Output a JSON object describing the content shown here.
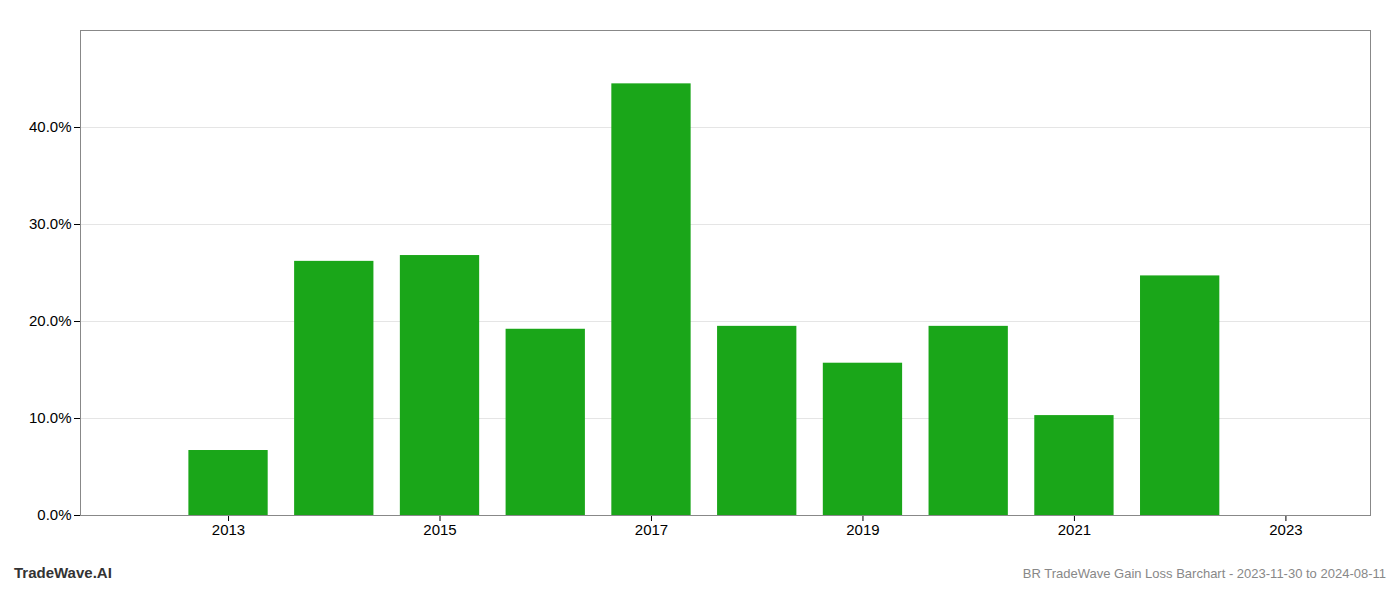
{
  "chart_data": {
    "type": "bar",
    "x": [
      2013,
      2014,
      2015,
      2016,
      2017,
      2018,
      2019,
      2020,
      2021,
      2022
    ],
    "values": [
      0.067,
      0.262,
      0.268,
      0.192,
      0.445,
      0.195,
      0.157,
      0.195,
      0.103,
      0.247
    ],
    "color": "#1aa619",
    "xlim": [
      2011.6,
      2023.8
    ],
    "xticks": [
      2013,
      2015,
      2017,
      2019,
      2021,
      2023
    ],
    "ylim": [
      0.0,
      0.5
    ],
    "yticks": [
      {
        "value": 0.0,
        "label": "0.0%"
      },
      {
        "value": 0.1,
        "label": "10.0%"
      },
      {
        "value": 0.2,
        "label": "20.0%"
      },
      {
        "value": 0.3,
        "label": "30.0%"
      },
      {
        "value": 0.4,
        "label": "40.0%"
      }
    ],
    "grid": true,
    "annotations": [
      "TradeWave.AI",
      "BR TradeWave Gain Loss Barchart - 2023-11-30 to 2024-08-11"
    ]
  }
}
